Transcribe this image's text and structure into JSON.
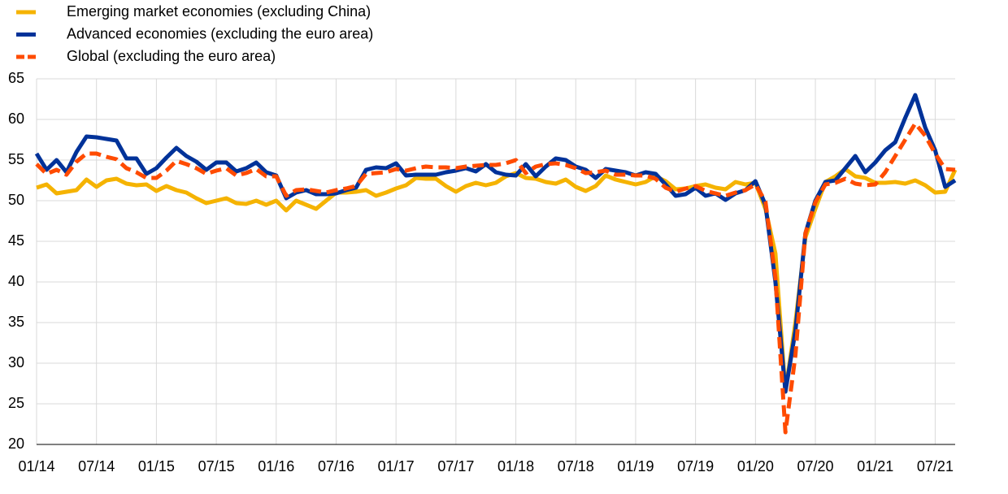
{
  "chart_data": {
    "type": "line",
    "categories": [
      "01/14",
      null,
      null,
      null,
      null,
      null,
      "07/14",
      null,
      null,
      null,
      null,
      null,
      "01/15",
      null,
      null,
      null,
      null,
      null,
      "07/15",
      null,
      null,
      null,
      null,
      null,
      "01/16",
      null,
      null,
      null,
      null,
      null,
      "07/16",
      null,
      null,
      null,
      null,
      null,
      "01/17",
      null,
      null,
      null,
      null,
      null,
      "07/17",
      null,
      null,
      null,
      null,
      null,
      "01/18",
      null,
      null,
      null,
      null,
      null,
      "07/18",
      null,
      null,
      null,
      null,
      null,
      "01/19",
      null,
      null,
      null,
      null,
      null,
      "07/19",
      null,
      null,
      null,
      null,
      null,
      "01/20",
      null,
      null,
      null,
      null,
      null,
      "07/20",
      null,
      null,
      null,
      null,
      null,
      "01/21",
      null,
      null,
      null,
      null,
      null,
      "07/21",
      null,
      null
    ],
    "series": [
      {
        "name": "Emerging market economies (excluding China)",
        "color": "#f5b301",
        "dashed": false,
        "values": [
          51.6,
          52.0,
          50.9,
          51.1,
          51.3,
          52.6,
          51.7,
          52.5,
          52.7,
          52.1,
          51.9,
          52.0,
          51.2,
          51.8,
          51.3,
          51.0,
          50.3,
          49.7,
          50.0,
          50.3,
          49.7,
          49.6,
          50.0,
          49.5,
          50.0,
          48.8,
          50.0,
          49.5,
          49.0,
          50.0,
          51.0,
          51.0,
          51.1,
          51.3,
          50.6,
          51.0,
          51.5,
          51.9,
          52.8,
          52.7,
          52.7,
          51.8,
          51.1,
          51.8,
          52.2,
          51.9,
          52.2,
          53.0,
          53.4,
          52.8,
          52.7,
          52.3,
          52.1,
          52.6,
          51.7,
          51.2,
          51.8,
          53.1,
          52.6,
          52.3,
          52.0,
          52.3,
          53.0,
          52.4,
          51.4,
          51.5,
          51.8,
          52.0,
          51.6,
          51.4,
          52.3,
          52.0,
          52.2,
          49.0,
          43.5,
          26.5,
          35.0,
          45.5,
          49.0,
          52.3,
          53.0,
          53.9,
          53.0,
          52.8,
          52.2,
          52.2,
          52.3,
          52.1,
          52.5,
          51.9,
          51.0,
          51.1,
          53.8
        ]
      },
      {
        "name": "Advanced economies (excluding the euro area)",
        "color": "#003299",
        "dashed": false,
        "values": [
          55.8,
          53.8,
          55.0,
          53.5,
          56.0,
          57.9,
          57.8,
          57.6,
          57.4,
          55.2,
          55.2,
          53.3,
          54.0,
          55.3,
          56.5,
          55.5,
          54.8,
          53.8,
          54.7,
          54.7,
          53.6,
          54.0,
          54.7,
          53.5,
          53.1,
          50.3,
          51.0,
          51.3,
          50.8,
          50.8,
          50.9,
          51.3,
          51.6,
          53.8,
          54.1,
          54.0,
          54.6,
          53.1,
          53.2,
          53.2,
          53.2,
          53.5,
          53.7,
          54.0,
          53.6,
          54.5,
          53.5,
          53.2,
          53.1,
          54.5,
          53.0,
          54.2,
          55.2,
          55.0,
          54.2,
          53.8,
          52.8,
          53.9,
          53.7,
          53.5,
          53.1,
          53.5,
          53.3,
          52.0,
          50.6,
          50.8,
          51.6,
          50.6,
          50.9,
          50.1,
          50.9,
          51.3,
          52.4,
          49.5,
          40.0,
          26.5,
          34.0,
          46.0,
          50.0,
          52.3,
          52.5,
          54.0,
          55.5,
          53.5,
          54.7,
          56.2,
          57.2,
          60.2,
          63.0,
          59.0,
          56.2,
          51.7,
          52.5
        ]
      },
      {
        "name": "Global (excluding the euro area)",
        "color": "#ff4b00",
        "dashed": true,
        "values": [
          54.5,
          53.3,
          53.8,
          53.2,
          54.8,
          55.8,
          55.8,
          55.4,
          55.1,
          54.0,
          53.5,
          52.8,
          52.8,
          53.7,
          54.9,
          54.5,
          54.0,
          53.3,
          53.7,
          54.0,
          53.1,
          53.4,
          53.9,
          53.0,
          53.0,
          50.6,
          51.3,
          51.4,
          51.2,
          51.0,
          51.3,
          51.5,
          51.8,
          53.3,
          53.4,
          53.5,
          53.9,
          53.7,
          54.0,
          54.2,
          54.1,
          54.1,
          54.0,
          54.2,
          54.3,
          54.4,
          54.4,
          54.6,
          55.0,
          53.4,
          54.2,
          54.5,
          54.6,
          54.4,
          54.0,
          53.4,
          53.5,
          53.7,
          53.2,
          53.2,
          53.1,
          53.1,
          52.7,
          51.6,
          51.1,
          51.5,
          51.8,
          51.2,
          50.9,
          50.6,
          51.0,
          51.3,
          52.0,
          49.9,
          40.5,
          21.5,
          31.0,
          46.0,
          49.8,
          52.0,
          52.2,
          52.7,
          52.1,
          51.9,
          52.0,
          53.5,
          55.5,
          57.5,
          59.5,
          58.0,
          55.8,
          53.9,
          53.8
        ]
      }
    ],
    "ylim": [
      20,
      65
    ],
    "yticks": [
      20,
      25,
      30,
      35,
      40,
      45,
      50,
      55,
      60,
      65
    ],
    "grid": true
  }
}
